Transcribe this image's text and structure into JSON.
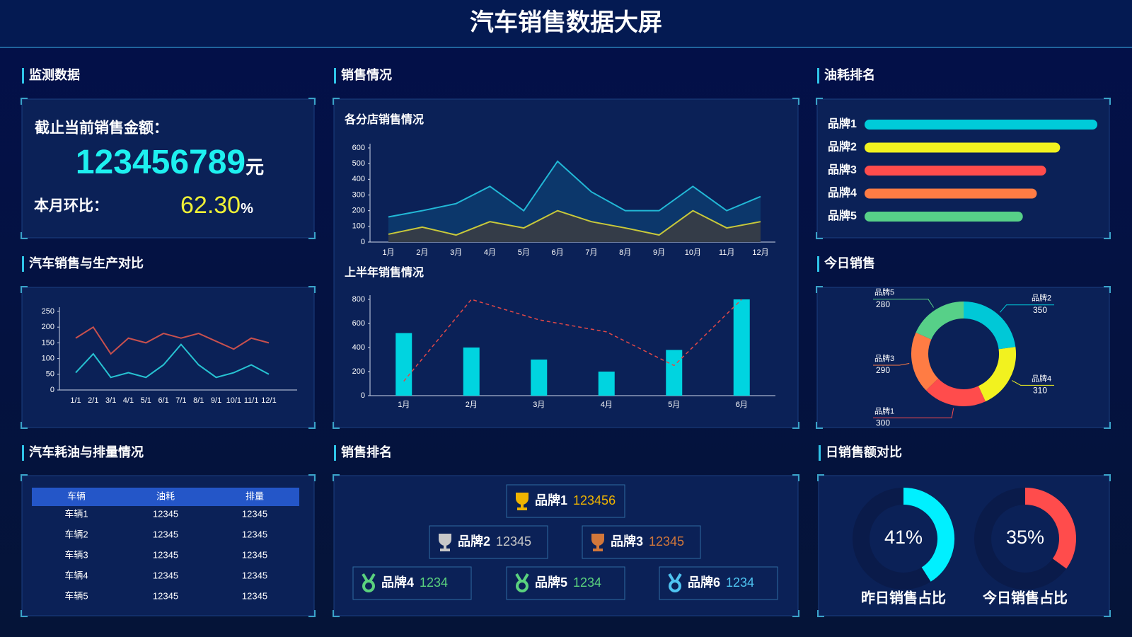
{
  "title": "汽车销售数据大屏",
  "panel_titles": [
    "监测数据",
    "销售情况",
    "油耗排名",
    "汽车销售与生产对比",
    "今日销售",
    "汽车耗油与排量情况",
    "销售排名",
    "日销售额对比"
  ],
  "monitor": {
    "amount_label": "截止当前销售金额：",
    "amount": "123456789",
    "amount_unit": "元",
    "mom_label": "本月环比：",
    "mom": "62.30",
    "mom_unit": "%"
  },
  "chart_data": [
    {
      "type": "line",
      "categories": [
        "1/1",
        "2/1",
        "3/1",
        "4/1",
        "5/1",
        "6/1",
        "7/1",
        "8/1",
        "9/1",
        "10/1",
        "11/1",
        "12/1"
      ],
      "series": [
        {
          "color": "#c8504e",
          "values": [
            165,
            200,
            115,
            165,
            150,
            180,
            165,
            180,
            155,
            130,
            165,
            150
          ]
        },
        {
          "color": "#27c3d2",
          "values": [
            55,
            115,
            40,
            55,
            40,
            80,
            145,
            80,
            40,
            55,
            80,
            50
          ]
        }
      ],
      "ylim": [
        0,
        250
      ],
      "yticks": [
        0,
        50,
        100,
        150,
        200,
        250
      ],
      "grid": false
    },
    {
      "type": "area",
      "title": "各分店销售情况",
      "categories": [
        "1月",
        "2月",
        "3月",
        "4月",
        "5月",
        "6月",
        "7月",
        "8月",
        "9月",
        "10月",
        "11月",
        "12月"
      ],
      "series": [
        {
          "color": "#22b8d6",
          "fill": "#0c3a6e",
          "values": [
            160,
            200,
            245,
            355,
            200,
            515,
            320,
            200,
            200,
            355,
            200,
            290
          ]
        },
        {
          "color": "#c9c93a",
          "fill": "#383d45",
          "values": [
            50,
            95,
            45,
            130,
            90,
            200,
            130,
            90,
            45,
            200,
            90,
            130
          ]
        }
      ],
      "ylim": [
        0,
        600
      ],
      "yticks": [
        0,
        100,
        200,
        300,
        400,
        500,
        600
      ],
      "grid": false
    },
    {
      "type": "bar",
      "title": "上半年销售情况",
      "categories": [
        "1月",
        "2月",
        "3月",
        "4月",
        "5月",
        "6月"
      ],
      "series": [
        {
          "type": "bar",
          "color": "#00d4e0",
          "values": [
            520,
            400,
            300,
            200,
            380,
            800
          ]
        },
        {
          "type": "line",
          "color": "#e04848",
          "dashed": true,
          "values": [
            120,
            800,
            630,
            530,
            250,
            800
          ]
        }
      ],
      "ylim": [
        0,
        800
      ],
      "yticks": [
        0,
        200,
        400,
        600,
        800
      ],
      "grid": false
    },
    {
      "type": "bar",
      "orientation": "horizontal",
      "categories": [
        "品牌1",
        "品牌2",
        "品牌3",
        "品牌4",
        "品牌5"
      ],
      "values": [
        100,
        84,
        78,
        74,
        68
      ],
      "colors": [
        "#00cbd9",
        "#f2f21f",
        "#ff4c4c",
        "#ff7c44",
        "#57d088"
      ]
    },
    {
      "type": "pie",
      "donut": true,
      "categories": [
        "品牌2",
        "品牌4",
        "品牌1",
        "品牌3",
        "品牌5"
      ],
      "values": [
        350,
        310,
        300,
        290,
        280
      ],
      "colors": [
        "#00c8d7",
        "#f2f21f",
        "#ff4c4c",
        "#ff7c44",
        "#57d088"
      ]
    },
    {
      "type": "gauge",
      "title": "昨日销售占比",
      "values": [
        41
      ],
      "value_labels": [
        "41%"
      ],
      "color": "#00f0ff"
    },
    {
      "type": "gauge",
      "title": "今日销售占比",
      "values": [
        35
      ],
      "value_labels": [
        "35%"
      ],
      "color": "#ff4c4c"
    }
  ],
  "table": {
    "header": [
      "车辆",
      "油耗",
      "排量"
    ],
    "rows": [
      [
        "车辆1",
        12345,
        12345
      ],
      [
        "车辆2",
        12345,
        12345
      ],
      [
        "车辆3",
        12345,
        12345
      ],
      [
        "车辆4",
        12345,
        12345
      ],
      [
        "车辆5",
        12345,
        12345
      ]
    ]
  },
  "ranking": [
    {
      "name": "品牌1",
      "value": 123456,
      "color": "#f0b400"
    },
    {
      "name": "品牌2",
      "value": 12345,
      "color": "#c8c8c8"
    },
    {
      "name": "品牌3",
      "value": 12345,
      "color": "#d2773a"
    },
    {
      "name": "品牌4",
      "value": 1234,
      "color": "#5ad17e"
    },
    {
      "name": "品牌5",
      "value": 1234,
      "color": "#5ad17e"
    },
    {
      "name": "品牌6",
      "value": 1234,
      "color": "#4ec3f0"
    }
  ]
}
